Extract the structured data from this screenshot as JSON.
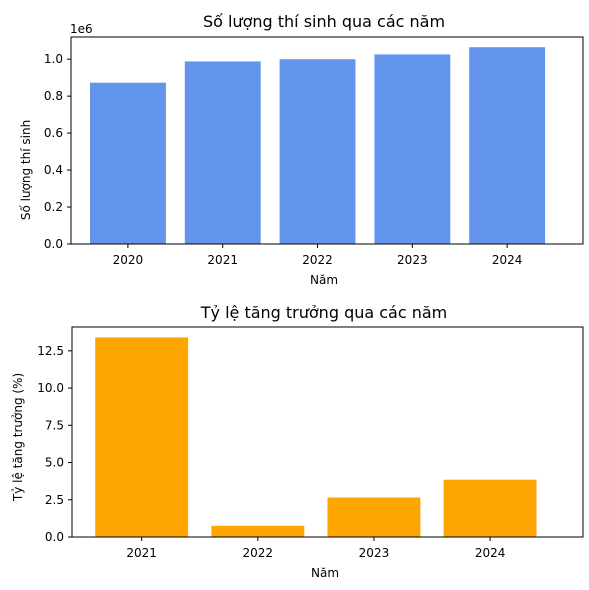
{
  "chart_data": [
    {
      "type": "bar",
      "title": "Số lượng thí sinh qua các năm",
      "xlabel": "Năm",
      "ylabel": "Số lượng thí sinh",
      "offset_label": "1e6",
      "categories": [
        "2020",
        "2021",
        "2022",
        "2023",
        "2024"
      ],
      "values": [
        873000,
        988000,
        1000000,
        1026000,
        1065000
      ],
      "ylim": [
        0,
        1120000
      ],
      "yticks": [
        0,
        200000,
        400000,
        600000,
        800000,
        1000000
      ],
      "ytick_labels": [
        "0.0",
        "0.2",
        "0.4",
        "0.6",
        "0.8",
        "1.0"
      ],
      "color": "#6495ED",
      "grid": false
    },
    {
      "type": "bar",
      "title": "Tỷ lệ tăng trưởng qua các năm",
      "xlabel": "Năm",
      "ylabel": "Tỷ lệ tăng trưởng (%)",
      "categories": [
        "2021",
        "2022",
        "2023",
        "2024"
      ],
      "values": [
        13.4,
        0.75,
        2.65,
        3.85
      ],
      "ylim": [
        0,
        14.1
      ],
      "yticks": [
        0,
        2.5,
        5,
        7.5,
        10,
        12.5
      ],
      "ytick_labels": [
        "0.0",
        "2.5",
        "5.0",
        "7.5",
        "10.0",
        "12.5"
      ],
      "color": "#FFA500",
      "grid": false
    }
  ]
}
